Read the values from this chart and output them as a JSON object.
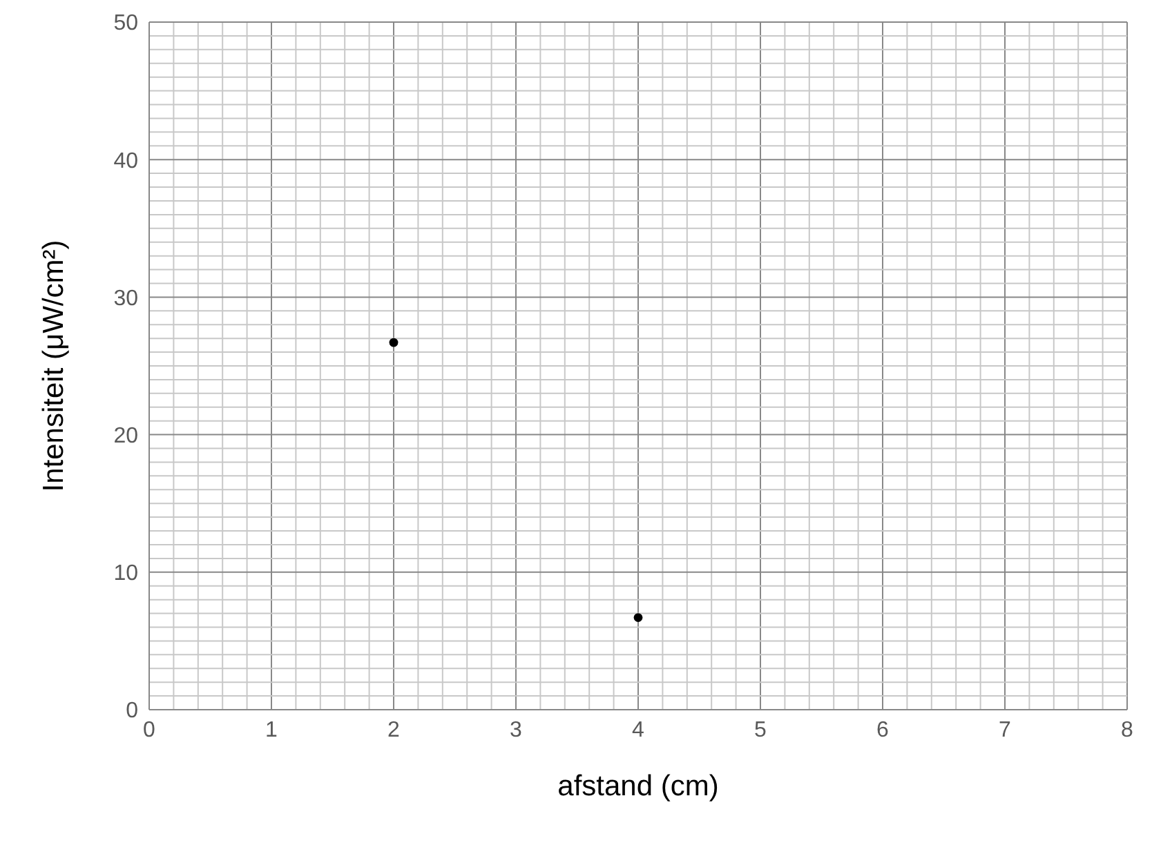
{
  "chart_data": {
    "type": "scatter",
    "xlabel": "afstand (cm)",
    "ylabel": "Intensiteit  (μW/cm²)",
    "x": [
      2,
      4
    ],
    "series": [
      {
        "color": "#000000",
        "values": [
          26.7,
          6.7
        ]
      }
    ],
    "marker": "circle",
    "grid": true,
    "xlim": [
      0,
      8
    ],
    "ylim": [
      0,
      50
    ],
    "xticks": [
      0,
      {
        "value": 0.2,
        "label": null
      },
      {
        "value": 0.4,
        "label": null
      },
      {
        "value": 0.6,
        "label": null
      },
      {
        "value": 0.8,
        "label": null
      },
      1,
      {
        "value": 1.2,
        "label": null
      },
      {
        "value": 1.4,
        "label": null
      },
      {
        "value": 1.6,
        "label": null
      },
      {
        "value": 1.8,
        "label": null
      },
      2,
      {
        "value": 2.2,
        "label": null
      },
      {
        "value": 2.4,
        "label": null
      },
      {
        "value": 2.6,
        "label": null
      },
      {
        "value": 2.8,
        "label": null
      },
      3,
      {
        "value": 3.2,
        "label": null
      },
      {
        "value": 3.4,
        "label": null
      },
      {
        "value": 3.6,
        "label": null
      },
      {
        "value": 3.8,
        "label": null
      },
      4,
      {
        "value": 4.2,
        "label": null
      },
      {
        "value": 4.4,
        "label": null
      },
      {
        "value": 4.6,
        "label": null
      },
      {
        "value": 4.8,
        "label": null
      },
      5,
      {
        "value": 5.2,
        "label": null
      },
      {
        "value": 5.4,
        "label": null
      },
      {
        "value": 5.6,
        "label": null
      },
      {
        "value": 5.8,
        "label": null
      },
      6,
      {
        "value": 6.2,
        "label": null
      },
      {
        "value": 6.4,
        "label": null
      },
      {
        "value": 6.6,
        "label": null
      },
      {
        "value": 6.8,
        "label": null
      },
      7,
      {
        "value": 7.2,
        "label": null
      },
      {
        "value": 7.4,
        "label": null
      },
      {
        "value": 7.6,
        "label": null
      },
      {
        "value": 7.8,
        "label": null
      },
      8
    ],
    "yticks": [
      0,
      {
        "value": 1,
        "label": null
      },
      {
        "value": 2,
        "label": null
      },
      {
        "value": 3,
        "label": null
      },
      {
        "value": 4,
        "label": null
      },
      {
        "value": 5,
        "label": null
      },
      {
        "value": 6,
        "label": null
      },
      {
        "value": 7,
        "label": null
      },
      {
        "value": 8,
        "label": null
      },
      {
        "value": 9,
        "label": null
      },
      10,
      {
        "value": 11,
        "label": null
      },
      {
        "value": 12,
        "label": null
      },
      {
        "value": 13,
        "label": null
      },
      {
        "value": 14,
        "label": null
      },
      {
        "value": 15,
        "label": null
      },
      {
        "value": 16,
        "label": null
      },
      {
        "value": 17,
        "label": null
      },
      {
        "value": 18,
        "label": null
      },
      {
        "value": 19,
        "label": null
      },
      20,
      {
        "value": 21,
        "label": null
      },
      {
        "value": 22,
        "label": null
      },
      {
        "value": 23,
        "label": null
      },
      {
        "value": 24,
        "label": null
      },
      {
        "value": 25,
        "label": null
      },
      {
        "value": 26,
        "label": null
      },
      {
        "value": 27,
        "label": null
      },
      {
        "value": 28,
        "label": null
      },
      {
        "value": 29,
        "label": null
      },
      30,
      {
        "value": 31,
        "label": null
      },
      {
        "value": 32,
        "label": null
      },
      {
        "value": 33,
        "label": null
      },
      {
        "value": 34,
        "label": null
      },
      {
        "value": 35,
        "label": null
      },
      {
        "value": 36,
        "label": null
      },
      {
        "value": 37,
        "label": null
      },
      {
        "value": 38,
        "label": null
      },
      {
        "value": 39,
        "label": null
      },
      40,
      {
        "value": 41,
        "label": null
      },
      {
        "value": 42,
        "label": null
      },
      {
        "value": 43,
        "label": null
      },
      {
        "value": 44,
        "label": null
      },
      {
        "value": 45,
        "label": null
      },
      {
        "value": 46,
        "label": null
      },
      {
        "value": 47,
        "label": null
      },
      {
        "value": 48,
        "label": null
      },
      {
        "value": 49,
        "label": null
      },
      50
    ]
  }
}
